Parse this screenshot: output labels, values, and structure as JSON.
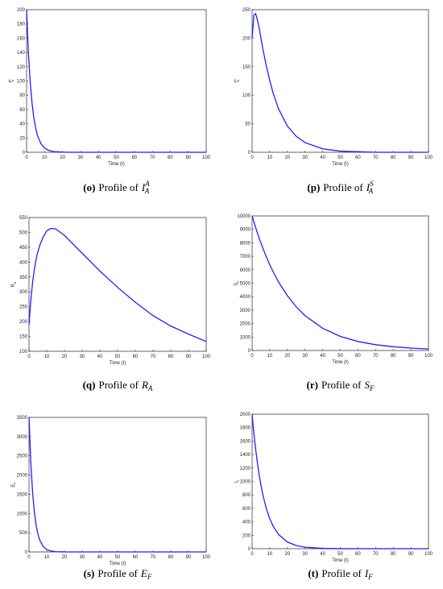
{
  "chart_data": [
    {
      "type": "line",
      "label": "(o)",
      "caption": "Profile of",
      "symbol": "I",
      "sub": "A",
      "sup": "A",
      "ylabel": "I",
      "ylabel_sub": "A",
      "ylabel_sup": "A",
      "xlabel": "Time (t)",
      "color": "#1f1fff",
      "x": [
        0,
        1,
        2,
        3,
        4,
        5,
        6,
        8,
        10,
        12,
        15,
        20,
        25,
        30,
        40,
        50,
        60,
        70,
        80,
        90,
        100
      ],
      "values": [
        200,
        140,
        99,
        70,
        49,
        35,
        24,
        12,
        6,
        3,
        1,
        0.2,
        0,
        0,
        0,
        0,
        0,
        0,
        0,
        0,
        0
      ],
      "xlim": [
        0,
        100
      ],
      "xticks": [
        0,
        10,
        20,
        30,
        40,
        50,
        60,
        70,
        80,
        90,
        100
      ],
      "ylim": [
        0,
        200
      ],
      "yticks": [
        0,
        20,
        40,
        60,
        80,
        100,
        120,
        140,
        160,
        180,
        200
      ]
    },
    {
      "type": "line",
      "label": "(p)",
      "caption": "Profile of",
      "symbol": "I",
      "sub": "A",
      "sup": "S",
      "ylabel": "I",
      "ylabel_sub": "A",
      "ylabel_sup": "S",
      "xlabel": "Time (t)",
      "color": "#1f1fff",
      "x": [
        0,
        1,
        2,
        3,
        4,
        5,
        6,
        8,
        10,
        12,
        15,
        20,
        25,
        30,
        40,
        50,
        60,
        70,
        80,
        90,
        100
      ],
      "values": [
        200,
        240,
        243,
        232,
        218,
        200,
        183,
        152,
        126,
        103,
        76,
        46,
        28,
        17,
        6,
        2,
        1,
        0,
        0,
        0,
        0
      ],
      "xlim": [
        0,
        100
      ],
      "xticks": [
        0,
        10,
        20,
        30,
        40,
        50,
        60,
        70,
        80,
        90,
        100
      ],
      "ylim": [
        0,
        250
      ],
      "yticks": [
        0,
        50,
        100,
        150,
        200,
        250
      ]
    },
    {
      "type": "line",
      "label": "(q)",
      "caption": "Profile of",
      "symbol": "R",
      "sub": "A",
      "ylabel": "R",
      "ylabel_sub": "A",
      "xlabel": "Time (t)",
      "color": "#1f1fff",
      "x": [
        0,
        1,
        2,
        3,
        4,
        5,
        6,
        8,
        10,
        12,
        15,
        20,
        25,
        30,
        40,
        50,
        60,
        70,
        80,
        90,
        100
      ],
      "values": [
        190,
        270,
        330,
        375,
        410,
        435,
        455,
        485,
        505,
        513,
        512,
        490,
        460,
        430,
        370,
        315,
        265,
        220,
        185,
        158,
        133
      ],
      "xlim": [
        0,
        100
      ],
      "xticks": [
        0,
        10,
        20,
        30,
        40,
        50,
        60,
        70,
        80,
        90,
        100
      ],
      "ylim": [
        100,
        550
      ],
      "yticks": [
        100,
        150,
        200,
        250,
        300,
        350,
        400,
        450,
        500,
        550
      ]
    },
    {
      "type": "line",
      "label": "(r)",
      "caption": "Profile of",
      "symbol": "S",
      "sub": "F",
      "ylabel": "S",
      "ylabel_sub": "F",
      "xlabel": "Time (t)",
      "color": "#1f1fff",
      "x": [
        0,
        1,
        2,
        3,
        4,
        5,
        6,
        8,
        10,
        12,
        15,
        20,
        25,
        30,
        40,
        50,
        60,
        70,
        80,
        90,
        100
      ],
      "values": [
        10000,
        9560,
        9140,
        8740,
        8350,
        7990,
        7640,
        6980,
        6380,
        5830,
        5090,
        4070,
        3250,
        2590,
        1650,
        1050,
        670,
        430,
        280,
        180,
        110
      ],
      "xlim": [
        0,
        100
      ],
      "xticks": [
        0,
        10,
        20,
        30,
        40,
        50,
        60,
        70,
        80,
        90,
        100
      ],
      "ylim": [
        0,
        10000
      ],
      "yticks": [
        0,
        1000,
        2000,
        3000,
        4000,
        5000,
        6000,
        7000,
        8000,
        9000,
        10000
      ]
    },
    {
      "type": "line",
      "label": "(s)",
      "caption": "Profile of",
      "symbol": "E",
      "sub": "F",
      "ylabel": "E",
      "ylabel_sub": "F",
      "xlabel": "Time (t)",
      "color": "#1f1fff",
      "x": [
        0,
        1,
        2,
        3,
        4,
        5,
        6,
        8,
        10,
        12,
        15,
        20,
        25,
        30,
        40,
        50,
        60,
        70,
        80,
        90,
        100
      ],
      "values": [
        3500,
        2350,
        1570,
        1050,
        700,
        470,
        315,
        140,
        63,
        28,
        8,
        1,
        0,
        0,
        0,
        0,
        0,
        0,
        0,
        0,
        0
      ],
      "xlim": [
        0,
        100
      ],
      "xticks": [
        0,
        10,
        20,
        30,
        40,
        50,
        60,
        70,
        80,
        90,
        100
      ],
      "ylim": [
        0,
        3500
      ],
      "yticks": [
        0,
        500,
        1000,
        1500,
        2000,
        2500,
        3000,
        3500
      ]
    },
    {
      "type": "line",
      "label": "(t)",
      "caption": "Profile of",
      "symbol": "I",
      "sub": "F",
      "ylabel": "I",
      "ylabel_sub": "F",
      "xlabel": "Time (t)",
      "color": "#1f1fff",
      "x": [
        0,
        1,
        2,
        3,
        4,
        5,
        6,
        8,
        10,
        12,
        15,
        20,
        25,
        30,
        40,
        50,
        60,
        70,
        80,
        90,
        100
      ],
      "values": [
        2000,
        1720,
        1480,
        1280,
        1100,
        945,
        813,
        602,
        446,
        330,
        211,
        100,
        47,
        22,
        5,
        1,
        0,
        0,
        0,
        0,
        0
      ],
      "xlim": [
        0,
        100
      ],
      "xticks": [
        0,
        10,
        20,
        30,
        40,
        50,
        60,
        70,
        80,
        90,
        100
      ],
      "ylim": [
        0,
        2000
      ],
      "yticks": [
        0,
        200,
        400,
        600,
        800,
        1000,
        1200,
        1400,
        1600,
        1800,
        2000
      ]
    }
  ]
}
